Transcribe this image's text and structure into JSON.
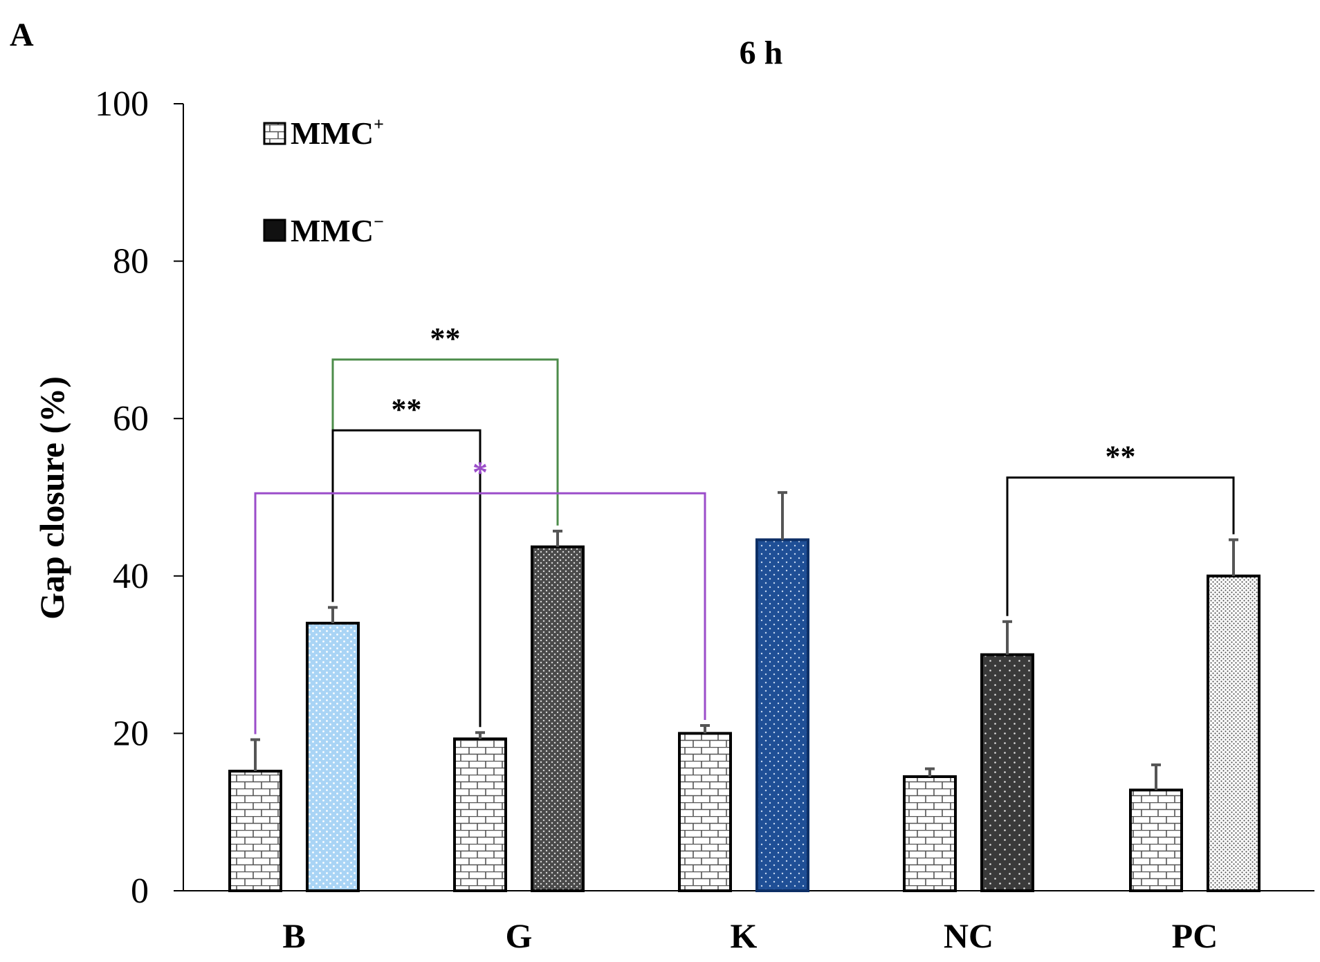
{
  "panel_label": "A",
  "chart_data": {
    "type": "bar",
    "title": "6 h",
    "xlabel": "",
    "ylabel": "Gap closure (%)",
    "ylim": [
      0,
      100
    ],
    "yticks": [
      0,
      20,
      40,
      60,
      80,
      100
    ],
    "categories": [
      "B",
      "G",
      "K",
      "NC",
      "PC"
    ],
    "legend_position": "top-left",
    "series": [
      {
        "name": "MMC",
        "sup": "+",
        "values": [
          15.2,
          19.3,
          20.0,
          14.5,
          12.8
        ],
        "errors": [
          4.0,
          0.8,
          1.0,
          1.0,
          3.2
        ],
        "bar_colors": [
          "#ffffff",
          "#ffffff",
          "#ffffff",
          "#ffffff",
          "#ffffff"
        ],
        "pattern": "brick"
      },
      {
        "name": "MMC",
        "sup": "−",
        "values": [
          34.0,
          43.7,
          44.6,
          30.0,
          40.0
        ],
        "errors": [
          2.0,
          2.0,
          6.0,
          4.2,
          4.6
        ],
        "bar_colors": [
          "#a9d4f5",
          "#4a4a4a",
          "#1f4f96",
          "#3a3a3a",
          "#ffffff"
        ],
        "pattern": "dots"
      }
    ],
    "significance": [
      {
        "label": "**",
        "from": [
          0,
          1
        ],
        "to": [
          1,
          1
        ],
        "level": 67.5,
        "color": "#4c8c4a",
        "text_color": "#000000"
      },
      {
        "label": "**",
        "from": [
          0,
          1
        ],
        "to": [
          1,
          0
        ],
        "level": 58.5,
        "color": "#000000",
        "text_color": "#000000"
      },
      {
        "label": "*",
        "from": [
          0,
          0
        ],
        "to": [
          2,
          0
        ],
        "level": 50.5,
        "color": "#9b4dca",
        "text_color": "#9b4dca"
      },
      {
        "label": "**",
        "from": [
          3,
          1
        ],
        "to": [
          4,
          1
        ],
        "level": 52.5,
        "color": "#000000",
        "text_color": "#000000"
      }
    ]
  }
}
